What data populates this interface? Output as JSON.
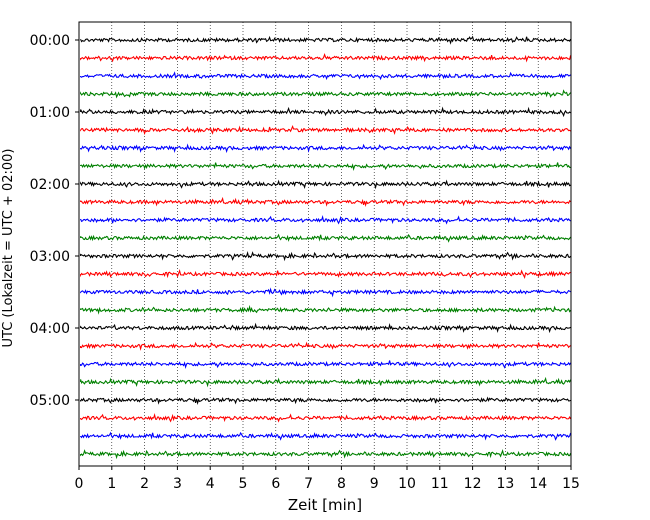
{
  "chart_data": {
    "type": "line",
    "title": "",
    "xlabel": "Zeit  [min]",
    "ylabel": "UTC (Lokalzeit = UTC + 02:00)",
    "xlim": [
      0,
      15
    ],
    "x_ticks": [
      0,
      1,
      2,
      3,
      4,
      5,
      6,
      7,
      8,
      9,
      10,
      11,
      12,
      13,
      14,
      15
    ],
    "y_tick_labels": [
      "00:00",
      "01:00",
      "02:00",
      "03:00",
      "04:00",
      "05:00"
    ],
    "grid": "vertical-dotted",
    "trace_colors": [
      "#000000",
      "#ff0000",
      "#0000ff",
      "#008000"
    ],
    "trace_interval_minutes": 15,
    "trace_count": 24,
    "traces_start": "00:00"
  }
}
